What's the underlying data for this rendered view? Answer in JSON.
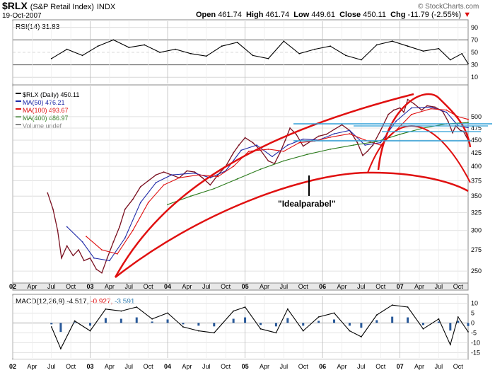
{
  "header": {
    "symbol": "$RLX",
    "name": "(S&P Retail Index)",
    "exchange": "INDX",
    "date": "19-Oct-2007",
    "brand": "© StockCharts.com",
    "quote": {
      "open_label": "Open",
      "open": "461.74",
      "high_label": "High",
      "high": "461.74",
      "low_label": "Low",
      "low": "449.61",
      "close_label": "Close",
      "close": "450.11",
      "chg_label": "Chg",
      "chg": "-11.79 (-2.55%)",
      "chg_arrow": "▼"
    }
  },
  "colors": {
    "price": "#7a1020",
    "ma50": "#1f2aa8",
    "ma100": "#e01010",
    "ma400": "#2a7a1a",
    "parabola": "#e01010",
    "channel": "#2f9fd8",
    "macd_hist": "#2a5a9a",
    "panel_bg": "#ffffff",
    "grid": "#d8d8d8"
  },
  "x_axis": {
    "labels": [
      "02",
      "Apr",
      "Jul",
      "Oct",
      "03",
      "Apr",
      "Jul",
      "Oct",
      "04",
      "Apr",
      "Jul",
      "Oct",
      "05",
      "Apr",
      "Jul",
      "Oct",
      "06",
      "Apr",
      "Jul",
      "Oct",
      "07",
      "Apr",
      "Jul",
      "Oct"
    ],
    "year_labels": [
      "02",
      "03",
      "04",
      "05",
      "06",
      "07"
    ]
  },
  "rsi_panel": {
    "legend": "RSI(14) 31.83",
    "ticks": [
      "90",
      "70",
      "50",
      "30",
      "10"
    ]
  },
  "price_panel": {
    "legend": [
      {
        "label": "$RLX (Daily) 450.11",
        "color": "#000000"
      },
      {
        "label": "MA(50) 476.21",
        "color": "#1f2aa8"
      },
      {
        "label": "MA(100) 493.67",
        "color": "#e01010"
      },
      {
        "label": "MA(400) 486.97",
        "color": "#2a7a1a"
      },
      {
        "label": "Volume undef",
        "color": "#888888"
      }
    ],
    "ticks": [
      "500",
      "475",
      "450",
      "425",
      "400",
      "375",
      "350",
      "325",
      "300",
      "275",
      "250"
    ],
    "annotation": "\"Idealparabel\""
  },
  "macd_panel": {
    "legend_label": "MACD(12,26,9)",
    "macd": "-4.517,",
    "signal": "-0.927,",
    "hist": "-3.591",
    "ticks": [
      "10",
      "5",
      "0",
      "-5",
      "-10",
      "-15"
    ]
  },
  "chart_data": {
    "type": "line",
    "title": "$RLX (S&P Retail Index) INDX",
    "y_scale": "log",
    "ylim": [
      240,
      555
    ],
    "x_range": [
      2002.0,
      2007.88
    ],
    "series": [
      {
        "name": "$RLX (Daily)",
        "points": [
          [
            2002.45,
            355
          ],
          [
            2002.52,
            330
          ],
          [
            2002.58,
            300
          ],
          [
            2002.63,
            265
          ],
          [
            2002.7,
            280
          ],
          [
            2002.78,
            268
          ],
          [
            2002.85,
            275
          ],
          [
            2002.92,
            262
          ],
          [
            2003.0,
            265
          ],
          [
            2003.08,
            252
          ],
          [
            2003.15,
            248
          ],
          [
            2003.22,
            265
          ],
          [
            2003.3,
            285
          ],
          [
            2003.38,
            305
          ],
          [
            2003.45,
            330
          ],
          [
            2003.55,
            345
          ],
          [
            2003.65,
            365
          ],
          [
            2003.75,
            375
          ],
          [
            2003.85,
            385
          ],
          [
            2003.95,
            390
          ],
          [
            2004.05,
            385
          ],
          [
            2004.15,
            380
          ],
          [
            2004.25,
            392
          ],
          [
            2004.35,
            390
          ],
          [
            2004.45,
            380
          ],
          [
            2004.55,
            368
          ],
          [
            2004.65,
            385
          ],
          [
            2004.75,
            400
          ],
          [
            2004.85,
            425
          ],
          [
            2004.92,
            440
          ],
          [
            2005.0,
            455
          ],
          [
            2005.1,
            445
          ],
          [
            2005.2,
            430
          ],
          [
            2005.3,
            410
          ],
          [
            2005.38,
            405
          ],
          [
            2005.45,
            425
          ],
          [
            2005.52,
            450
          ],
          [
            2005.58,
            475
          ],
          [
            2005.66,
            462
          ],
          [
            2005.75,
            438
          ],
          [
            2005.85,
            448
          ],
          [
            2005.95,
            458
          ],
          [
            2006.05,
            462
          ],
          [
            2006.15,
            472
          ],
          [
            2006.25,
            482
          ],
          [
            2006.35,
            470
          ],
          [
            2006.45,
            445
          ],
          [
            2006.52,
            420
          ],
          [
            2006.58,
            428
          ],
          [
            2006.65,
            440
          ],
          [
            2006.75,
            470
          ],
          [
            2006.85,
            505
          ],
          [
            2006.92,
            515
          ],
          [
            2007.0,
            520
          ],
          [
            2007.05,
            510
          ],
          [
            2007.1,
            540
          ],
          [
            2007.18,
            530
          ],
          [
            2007.28,
            515
          ],
          [
            2007.35,
            525
          ],
          [
            2007.45,
            522
          ],
          [
            2007.55,
            512
          ],
          [
            2007.62,
            490
          ],
          [
            2007.68,
            465
          ],
          [
            2007.72,
            480
          ],
          [
            2007.78,
            470
          ],
          [
            2007.82,
            468
          ],
          [
            2007.88,
            450
          ]
        ]
      },
      {
        "name": "MA(50)",
        "points": [
          [
            2002.7,
            305
          ],
          [
            2002.9,
            285
          ],
          [
            2003.05,
            265
          ],
          [
            2003.25,
            262
          ],
          [
            2003.45,
            290
          ],
          [
            2003.65,
            340
          ],
          [
            2003.85,
            372
          ],
          [
            2004.05,
            385
          ],
          [
            2004.35,
            388
          ],
          [
            2004.55,
            380
          ],
          [
            2004.75,
            392
          ],
          [
            2004.95,
            430
          ],
          [
            2005.15,
            440
          ],
          [
            2005.35,
            418
          ],
          [
            2005.55,
            440
          ],
          [
            2005.75,
            452
          ],
          [
            2005.95,
            450
          ],
          [
            2006.15,
            463
          ],
          [
            2006.35,
            470
          ],
          [
            2006.55,
            440
          ],
          [
            2006.75,
            445
          ],
          [
            2006.95,
            490
          ],
          [
            2007.15,
            520
          ],
          [
            2007.4,
            522
          ],
          [
            2007.6,
            510
          ],
          [
            2007.75,
            480
          ],
          [
            2007.88,
            476
          ]
        ]
      },
      {
        "name": "MA(100)",
        "points": [
          [
            2002.95,
            292
          ],
          [
            2003.15,
            275
          ],
          [
            2003.35,
            270
          ],
          [
            2003.55,
            300
          ],
          [
            2003.75,
            340
          ],
          [
            2003.95,
            368
          ],
          [
            2004.15,
            380
          ],
          [
            2004.4,
            385
          ],
          [
            2004.65,
            382
          ],
          [
            2004.85,
            400
          ],
          [
            2005.05,
            428
          ],
          [
            2005.3,
            432
          ],
          [
            2005.5,
            428
          ],
          [
            2005.7,
            445
          ],
          [
            2005.9,
            448
          ],
          [
            2006.1,
            456
          ],
          [
            2006.35,
            463
          ],
          [
            2006.55,
            450
          ],
          [
            2006.75,
            440
          ],
          [
            2006.95,
            470
          ],
          [
            2007.15,
            505
          ],
          [
            2007.4,
            518
          ],
          [
            2007.6,
            515
          ],
          [
            2007.75,
            500
          ],
          [
            2007.88,
            494
          ]
        ]
      },
      {
        "name": "MA(400)",
        "points": [
          [
            2004.0,
            337
          ],
          [
            2004.3,
            350
          ],
          [
            2004.6,
            362
          ],
          [
            2004.9,
            378
          ],
          [
            2005.2,
            395
          ],
          [
            2005.5,
            410
          ],
          [
            2005.8,
            422
          ],
          [
            2006.1,
            432
          ],
          [
            2006.4,
            440
          ],
          [
            2006.7,
            447
          ],
          [
            2007.0,
            462
          ],
          [
            2007.3,
            475
          ],
          [
            2007.6,
            484
          ],
          [
            2007.88,
            487
          ]
        ]
      },
      {
        "name": "MACD",
        "points": [
          [
            2002.5,
            -2
          ],
          [
            2002.62,
            -13
          ],
          [
            2002.8,
            1
          ],
          [
            2003.0,
            -4
          ],
          [
            2003.2,
            7
          ],
          [
            2003.4,
            6
          ],
          [
            2003.6,
            8
          ],
          [
            2003.8,
            2
          ],
          [
            2004.0,
            5
          ],
          [
            2004.2,
            -2
          ],
          [
            2004.4,
            -4
          ],
          [
            2004.6,
            -5
          ],
          [
            2004.85,
            6
          ],
          [
            2005.0,
            8
          ],
          [
            2005.2,
            -3
          ],
          [
            2005.4,
            -5
          ],
          [
            2005.55,
            7
          ],
          [
            2005.75,
            -4
          ],
          [
            2005.95,
            3
          ],
          [
            2006.15,
            5
          ],
          [
            2006.35,
            -4
          ],
          [
            2006.5,
            -7
          ],
          [
            2006.7,
            4
          ],
          [
            2006.9,
            9
          ],
          [
            2007.1,
            8
          ],
          [
            2007.3,
            -3
          ],
          [
            2007.5,
            2
          ],
          [
            2007.65,
            -11
          ],
          [
            2007.75,
            3
          ],
          [
            2007.88,
            -4.5
          ]
        ]
      },
      {
        "name": "RSI(14)",
        "points": [
          [
            2002.5,
            40
          ],
          [
            2002.7,
            55
          ],
          [
            2002.9,
            45
          ],
          [
            2003.1,
            60
          ],
          [
            2003.3,
            70
          ],
          [
            2003.5,
            58
          ],
          [
            2003.7,
            62
          ],
          [
            2003.9,
            50
          ],
          [
            2004.1,
            55
          ],
          [
            2004.3,
            48
          ],
          [
            2004.5,
            44
          ],
          [
            2004.7,
            60
          ],
          [
            2004.9,
            66
          ],
          [
            2005.1,
            45
          ],
          [
            2005.3,
            40
          ],
          [
            2005.5,
            68
          ],
          [
            2005.7,
            48
          ],
          [
            2005.9,
            55
          ],
          [
            2006.1,
            60
          ],
          [
            2006.3,
            45
          ],
          [
            2006.5,
            38
          ],
          [
            2006.7,
            62
          ],
          [
            2006.9,
            68
          ],
          [
            2007.1,
            60
          ],
          [
            2007.3,
            52
          ],
          [
            2007.5,
            56
          ],
          [
            2007.65,
            38
          ],
          [
            2007.8,
            48
          ],
          [
            2007.88,
            31.83
          ]
        ]
      }
    ]
  }
}
